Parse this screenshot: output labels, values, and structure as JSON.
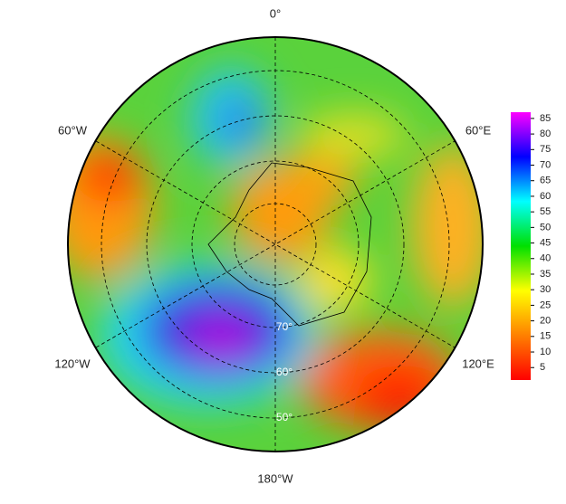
{
  "map": {
    "longitude_labels": [
      "0°",
      "60°E",
      "120°E",
      "180°W",
      "120°W",
      "60°W"
    ],
    "latitude_labels": [
      "70°",
      "60°",
      "50°"
    ],
    "colorbar": {
      "clim": [
        1,
        87
      ],
      "ticks": [
        5,
        10,
        15,
        20,
        25,
        30,
        35,
        40,
        45,
        50,
        55,
        60,
        65,
        70,
        75,
        80,
        85
      ],
      "colormap": [
        "#ff0000",
        "#ff8000",
        "#ffff00",
        "#00e000",
        "#00ffff",
        "#0000ff",
        "#ff00ff"
      ]
    }
  }
}
